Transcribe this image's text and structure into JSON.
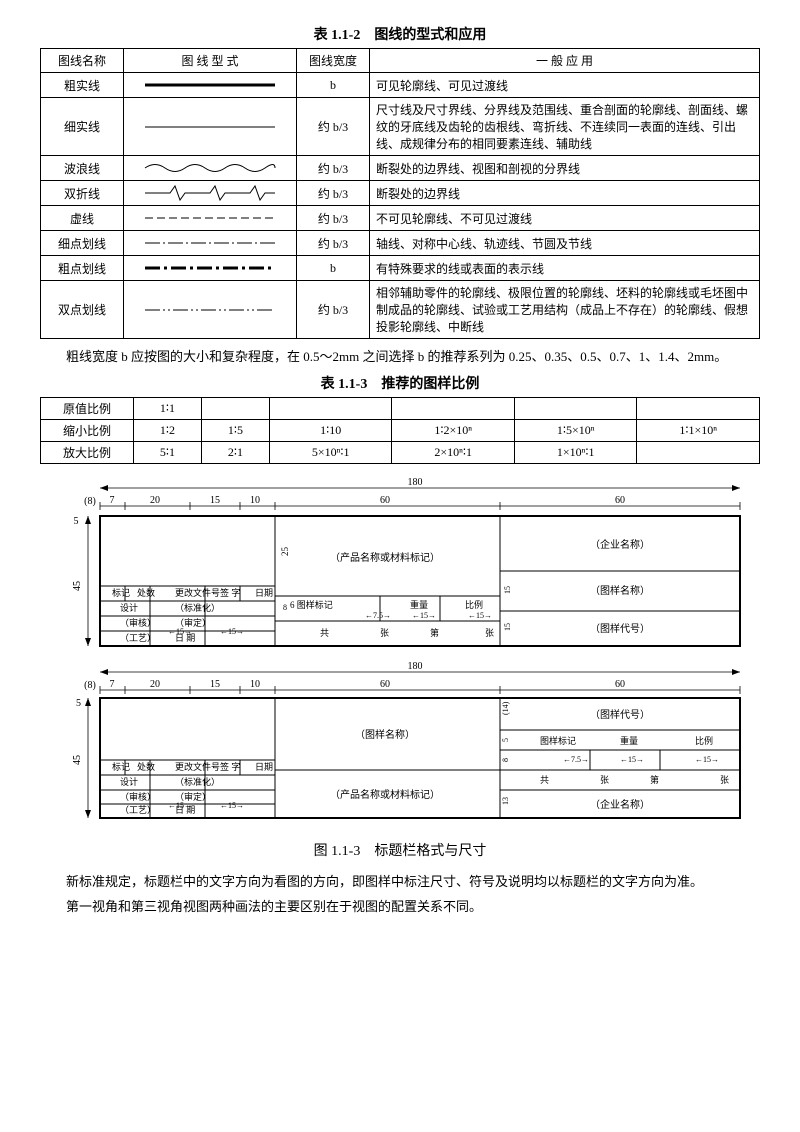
{
  "table1": {
    "title": "表 1.1-2　图线的型式和应用",
    "headers": [
      "图线名称",
      "图 线 型 式",
      "图线宽度",
      "一 般 应 用"
    ],
    "rows": [
      {
        "name": "粗实线",
        "style": "thick-solid",
        "width": "b",
        "usage": "可见轮廓线、可见过渡线"
      },
      {
        "name": "细实线",
        "style": "thin-solid",
        "width": "约 b/3",
        "usage": "尺寸线及尺寸界线、分界线及范围线、重合剖面的轮廓线、剖面线、螺纹的牙底线及齿轮的齿根线、弯折线、不连续同一表面的连线、引出线、成规律分布的相同要素连线、辅助线"
      },
      {
        "name": "波浪线",
        "style": "wave",
        "width": "约 b/3",
        "usage": "断裂处的边界线、视图和剖视的分界线"
      },
      {
        "name": "双折线",
        "style": "zigzag",
        "width": "约 b/3",
        "usage": "断裂处的边界线"
      },
      {
        "name": "虚线",
        "style": "dashed",
        "width": "约 b/3",
        "usage": "不可见轮廓线、不可见过渡线"
      },
      {
        "name": "细点划线",
        "style": "thin-dashdot",
        "width": "约 b/3",
        "usage": "轴线、对称中心线、轨迹线、节圆及节线"
      },
      {
        "name": "粗点划线",
        "style": "thick-dashdot",
        "width": "b",
        "usage": "有特殊要求的线或表面的表示线"
      },
      {
        "name": "双点划线",
        "style": "double-dashdot",
        "width": "约 b/3",
        "usage": "相邻辅助零件的轮廓线、极限位置的轮廓线、坯料的轮廓线或毛坯图中制成品的轮廓线、试验或工艺用结构（成品上不存在）的轮廓线、假想投影轮廓线、中断线"
      }
    ]
  },
  "para1": "粗线宽度 b 应按图的大小和复杂程度，在 0.5～2mm 之间选择 b 的推荐系列为 0.25、0.35、0.5、0.7、1、1.4、2mm。",
  "table2": {
    "title": "表 1.1-3　推荐的图样比例",
    "rows": [
      {
        "label": "原值比例",
        "cells": [
          "1∶1",
          "",
          "",
          "",
          "",
          ""
        ]
      },
      {
        "label": "缩小比例",
        "cells": [
          "1∶2",
          "1∶5",
          "1∶10",
          "1∶2×10ⁿ",
          "1∶5×10ⁿ",
          "1∶1×10ⁿ"
        ]
      },
      {
        "label": "放大比例",
        "cells": [
          "5∶1",
          "2∶1",
          "5×10ⁿ∶1",
          "2×10ⁿ∶1",
          "1×10ⁿ∶1",
          ""
        ]
      }
    ]
  },
  "diagram": {
    "total_width": "180",
    "margin_left": "(8)",
    "col_widths": [
      "7",
      "20",
      "15",
      "10",
      "60",
      "60"
    ],
    "height_left": "45",
    "height_top": "5",
    "block1": {
      "labels": {
        "product": "（产品名称或材料标记）",
        "company": "（企业名称）",
        "drawing_name": "（图样名称）",
        "drawing_code": "（图样代号）",
        "mark_row": [
          "标记",
          "处数",
          "更改文件号",
          "签 字",
          "日期"
        ],
        "design_row": [
          "设计",
          "",
          "（标准化）",
          "",
          ""
        ],
        "audit_row": [
          "",
          "",
          "（审定）",
          "",
          ""
        ],
        "check_row": [
          "（审核）",
          "",
          "",
          "",
          ""
        ],
        "tech_row": [
          "（工艺）",
          "",
          "日 期",
          "",
          ""
        ],
        "middle_labels": [
          "6 图样标记",
          "重量",
          "比例"
        ],
        "bottom_labels": [
          "共",
          "张",
          "第",
          "张"
        ],
        "dims_h": [
          "25",
          "15",
          "15"
        ],
        "dims_inner": [
          "15",
          "15",
          "7.5",
          "15",
          "15",
          "8"
        ]
      }
    },
    "block2": {
      "labels": {
        "drawing_name": "（图样名称）",
        "drawing_code": "（图样代号）",
        "mark_weight_ratio": [
          "图样标记",
          "重量",
          "比例"
        ],
        "product": "（产品名称或材料标记）",
        "company": "（企业名称）",
        "bottom_labels": [
          "共",
          "张",
          "第",
          "张"
        ],
        "dims_h": [
          "(14)",
          "5",
          "8",
          "13"
        ],
        "dims_inner": [
          "7.5",
          "15",
          "15"
        ]
      }
    },
    "fig_title": "图 1.1-3　标题栏格式与尺寸"
  },
  "para2": "新标准规定，标题栏中的文字方向为看图的方向，即图样中标注尺寸、符号及说明均以标题栏的文字方向为准。",
  "para3": "第一视角和第三视角视图两种画法的主要区别在于视图的配置关系不同。",
  "colors": {
    "text": "#000000",
    "border": "#000000",
    "bg": "#ffffff"
  }
}
